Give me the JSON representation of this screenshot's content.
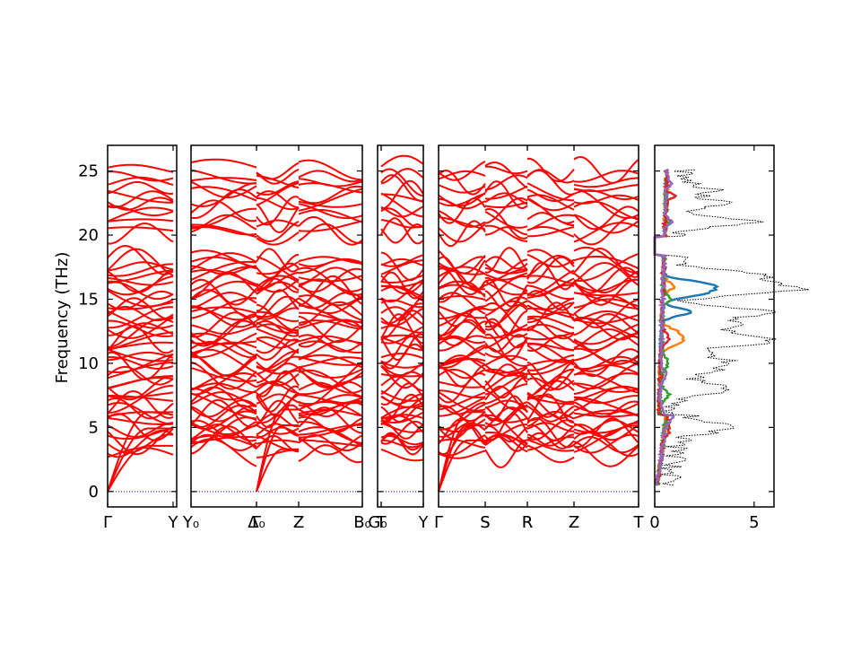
{
  "chart_data": {
    "type": "line",
    "ylabel": "Frequency (THz)",
    "ylim": [
      -1.2,
      27
    ],
    "yticks": [
      0,
      5,
      10,
      15,
      20,
      25
    ],
    "colors": {
      "band": "#ff0000",
      "zero_line": "#0000cc",
      "total_dos": "#000000"
    },
    "band_panels": [
      {
        "segments": [
          {
            "xlabels": [
              "Γ",
              "Y"
            ]
          }
        ]
      },
      {
        "segments": [
          {
            "xlabels": [
              "Y₀",
              "Δ₀"
            ]
          },
          {
            "xlabels": [
              "Γ",
              "Z"
            ]
          },
          {
            "xlabels": [
              "Z",
              "B₀"
            ]
          }
        ]
      },
      {
        "segments": [
          {
            "xlabels": [
              "G₀",
              "T"
            ]
          },
          {
            "xlabels": [
              "T",
              "Y"
            ]
          }
        ]
      },
      {
        "segments": [
          {
            "xlabels": [
              "Γ",
              "S"
            ]
          },
          {
            "xlabels": [
              "S",
              "R"
            ]
          },
          {
            "xlabels": [
              "R",
              "Z"
            ]
          },
          {
            "xlabels": [
              "Z",
              "T"
            ]
          }
        ]
      }
    ],
    "dos_panel": {
      "xlim": [
        0,
        6
      ],
      "xticks": [
        0,
        5
      ],
      "series": [
        {
          "color": "#000000"
        },
        {
          "color": "#1f77b4"
        },
        {
          "color": "#ff7f0e"
        },
        {
          "color": "#2ca02c"
        },
        {
          "color": "#d62728"
        },
        {
          "color": "#9467bd"
        }
      ]
    }
  }
}
